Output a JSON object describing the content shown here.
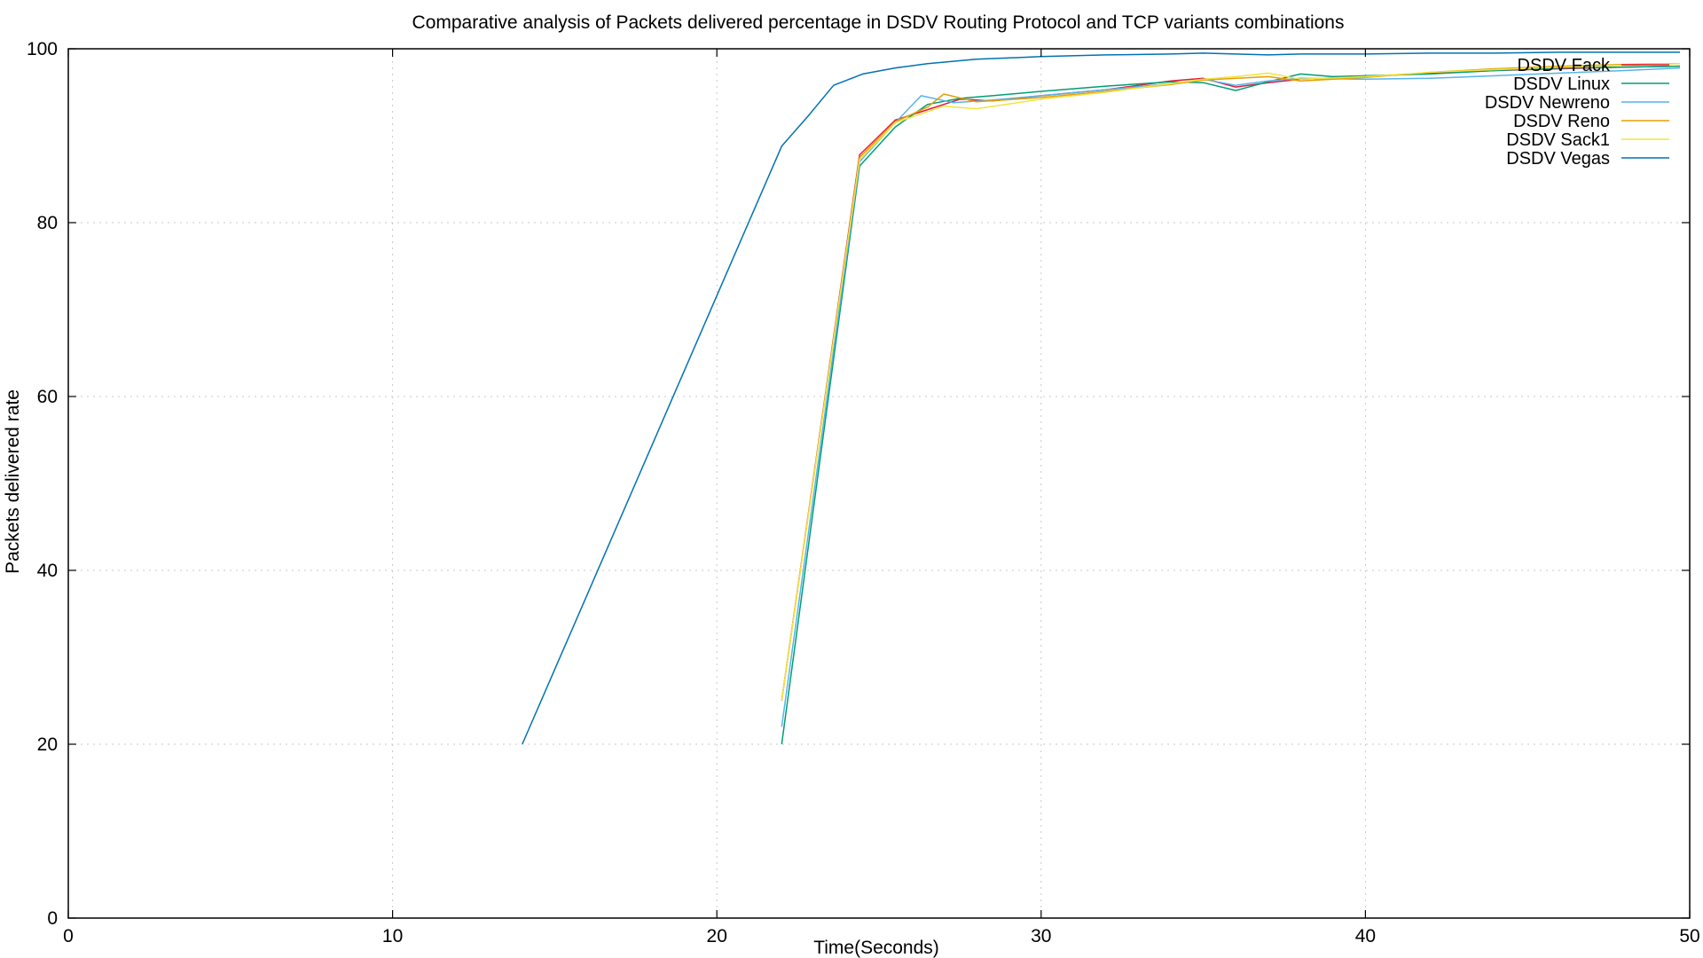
{
  "chart_data": {
    "type": "line",
    "title": "Comparative analysis of Packets delivered percentage in DSDV Routing Protocol and TCP variants combinations",
    "xlabel": "Time(Seconds)",
    "ylabel": "Packets delivered rate",
    "xlim": [
      0,
      50
    ],
    "ylim": [
      0,
      100
    ],
    "xticks": [
      0,
      10,
      20,
      30,
      40,
      50
    ],
    "yticks": [
      0,
      20,
      40,
      60,
      80,
      100
    ],
    "grid": true,
    "legend_position": "top-right",
    "series": [
      {
        "name": "DSDV Fack",
        "color": "#e8183c",
        "x": [
          22,
          24.4,
          25.5,
          26.5,
          27.5,
          28.5,
          30,
          32,
          34,
          35,
          36,
          37,
          38,
          40,
          42,
          44,
          46,
          48,
          49.7
        ],
        "y": [
          25,
          87.8,
          91.8,
          93.0,
          94.2,
          94.0,
          94.6,
          95.3,
          96.3,
          96.6,
          95.6,
          96.1,
          96.5,
          96.8,
          97.2,
          97.5,
          97.7,
          97.9,
          98.0
        ]
      },
      {
        "name": "DSDV Linux",
        "color": "#009e73",
        "x": [
          22,
          24.4,
          25.5,
          26.5,
          27.5,
          28.5,
          30,
          32,
          34,
          35,
          36,
          37,
          38,
          39,
          40,
          42,
          44,
          46,
          48,
          49.7
        ],
        "y": [
          20,
          86.5,
          91.0,
          93.6,
          94.3,
          94.6,
          95.1,
          95.7,
          96.2,
          96.1,
          95.2,
          96.2,
          97.1,
          96.8,
          96.9,
          97.1,
          97.5,
          97.8,
          97.9,
          98.0
        ]
      },
      {
        "name": "DSDV Newreno",
        "color": "#56b4e9",
        "x": [
          22,
          24.4,
          25.5,
          26.3,
          27.3,
          28.5,
          30,
          32,
          34,
          35,
          36,
          37,
          38,
          40,
          42,
          44,
          46,
          48,
          49.7
        ],
        "y": [
          22,
          87.0,
          91.5,
          94.6,
          93.8,
          94.1,
          94.6,
          95.3,
          96.0,
          96.5,
          95.8,
          96.3,
          96.6,
          96.5,
          96.6,
          96.9,
          97.2,
          97.5,
          97.8
        ]
      },
      {
        "name": "DSDV Reno",
        "color": "#e69f00",
        "x": [
          22,
          24.4,
          25.5,
          26.5,
          27.0,
          28.0,
          30,
          32,
          34,
          35,
          36,
          37,
          38,
          40,
          42,
          44,
          46,
          48,
          49.7
        ],
        "y": [
          25,
          87.5,
          91.6,
          93.3,
          94.8,
          93.9,
          94.4,
          95.1,
          95.9,
          96.4,
          96.6,
          96.8,
          96.3,
          96.7,
          97.3,
          97.7,
          98.0,
          98.2,
          98.3
        ]
      },
      {
        "name": "DSDV Sack1",
        "color": "#f0e442",
        "x": [
          22,
          24.4,
          25.5,
          27.0,
          28.0,
          30,
          32,
          34,
          35,
          36,
          37,
          38,
          40,
          42,
          44,
          46,
          48,
          49.7
        ],
        "y": [
          25,
          87.2,
          91.5,
          93.4,
          93.1,
          94.2,
          95.0,
          96.0,
          96.5,
          96.8,
          97.2,
          96.5,
          96.8,
          97.3,
          97.6,
          97.9,
          98.1,
          98.3
        ]
      },
      {
        "name": "DSDV Vegas",
        "color": "#0072b2",
        "x": [
          14,
          16,
          18,
          20,
          22,
          22.8,
          23.6,
          24.5,
          25.5,
          26.5,
          28,
          30,
          32,
          34,
          35,
          36,
          37,
          38,
          40,
          42,
          44,
          46,
          48,
          49.7
        ],
        "y": [
          20,
          37.2,
          54.4,
          71.6,
          88.8,
          92.2,
          95.8,
          97.1,
          97.8,
          98.3,
          98.8,
          99.1,
          99.3,
          99.4,
          99.5,
          99.4,
          99.3,
          99.4,
          99.4,
          99.5,
          99.5,
          99.6,
          99.6,
          99.6
        ]
      }
    ]
  }
}
